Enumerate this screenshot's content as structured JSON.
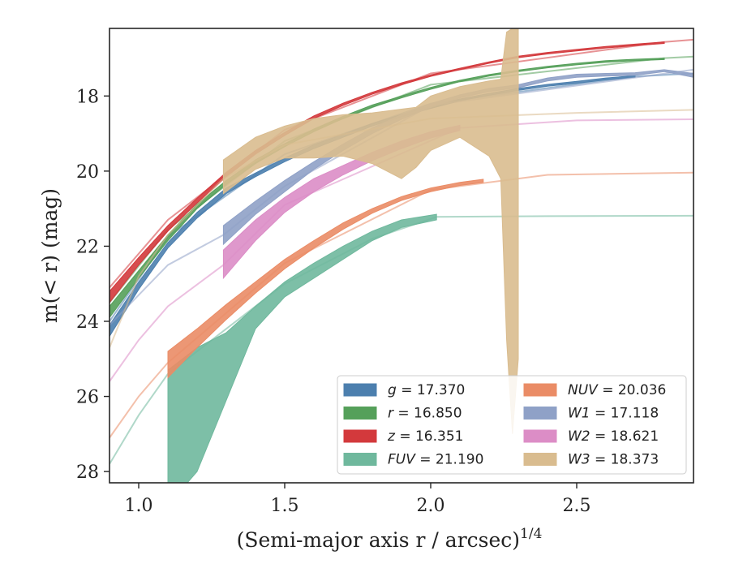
{
  "chart_data": {
    "type": "area",
    "xlabel": "(Semi-major axis r / arcsec)",
    "xlabel_exponent": "1/4",
    "ylabel": "m(< r) (mag)",
    "xlim": [
      0.9,
      2.9
    ],
    "ylim": [
      28.3,
      16.2
    ],
    "y_inverted": true,
    "x_ticks": [
      "1.0",
      "1.5",
      "2.0",
      "2.5"
    ],
    "y_ticks": [
      "18",
      "20",
      "22",
      "24",
      "26",
      "28"
    ],
    "legend": {
      "placement": "lower-right",
      "columns": 2
    },
    "series": [
      {
        "name": "g = 17.370",
        "label_var": "g",
        "label_val": "17.370",
        "color": "#4c7fae",
        "band": [
          [
            0.9,
            24.4,
            24.1
          ],
          [
            1.0,
            23.15,
            22.95
          ],
          [
            1.1,
            22.05,
            21.9
          ],
          [
            1.2,
            21.25,
            21.1
          ],
          [
            1.3,
            20.6,
            20.45
          ],
          [
            1.4,
            20.15,
            20.05
          ],
          [
            1.5,
            19.75,
            19.65
          ],
          [
            1.6,
            19.4,
            19.3
          ],
          [
            1.7,
            19.1,
            19.02
          ],
          [
            1.8,
            18.8,
            18.73
          ],
          [
            1.9,
            18.55,
            18.49
          ],
          [
            2.0,
            18.33,
            18.27
          ],
          [
            2.1,
            18.13,
            18.08
          ],
          [
            2.2,
            17.98,
            17.93
          ],
          [
            2.3,
            17.85,
            17.8
          ],
          [
            2.4,
            17.74,
            17.69
          ],
          [
            2.5,
            17.66,
            17.61
          ],
          [
            2.6,
            17.57,
            17.52
          ],
          [
            2.7,
            17.5,
            17.46
          ]
        ],
        "tail": [
          [
            0.9,
            24.0
          ],
          [
            1.1,
            21.75
          ],
          [
            1.5,
            19.55
          ],
          [
            2.0,
            18.2
          ],
          [
            2.7,
            17.48
          ],
          [
            2.9,
            17.4
          ]
        ]
      },
      {
        "name": "r = 16.850",
        "label_var": "r",
        "label_val": "16.850",
        "color": "#55a05a",
        "band": [
          [
            0.9,
            23.9,
            23.6
          ],
          [
            1.0,
            22.85,
            22.65
          ],
          [
            1.1,
            21.85,
            21.7
          ],
          [
            1.2,
            21.0,
            20.88
          ],
          [
            1.3,
            20.35,
            20.25
          ],
          [
            1.4,
            19.8,
            19.7
          ],
          [
            1.5,
            19.35,
            19.27
          ],
          [
            1.6,
            18.95,
            18.88
          ],
          [
            1.7,
            18.6,
            18.54
          ],
          [
            1.8,
            18.3,
            18.24
          ],
          [
            1.9,
            18.05,
            18.0
          ],
          [
            2.0,
            17.82,
            17.77
          ],
          [
            2.1,
            17.62,
            17.58
          ],
          [
            2.2,
            17.47,
            17.43
          ],
          [
            2.3,
            17.35,
            17.31
          ],
          [
            2.4,
            17.25,
            17.21
          ],
          [
            2.5,
            17.17,
            17.13
          ],
          [
            2.6,
            17.1,
            17.06
          ],
          [
            2.7,
            17.06,
            17.02
          ],
          [
            2.8,
            17.03,
            16.99
          ]
        ],
        "tail": [
          [
            0.9,
            23.5
          ],
          [
            1.1,
            21.55
          ],
          [
            1.5,
            19.2
          ],
          [
            2.0,
            17.7
          ],
          [
            2.8,
            16.99
          ],
          [
            2.9,
            16.95
          ]
        ]
      },
      {
        "name": "z = 16.351",
        "label_var": "z",
        "label_val": "16.351",
        "color": "#d3393c",
        "band": [
          [
            0.9,
            23.5,
            23.2
          ],
          [
            1.0,
            22.5,
            22.3
          ],
          [
            1.1,
            21.6,
            21.45
          ],
          [
            1.2,
            20.85,
            20.72
          ],
          [
            1.3,
            20.15,
            20.03
          ],
          [
            1.4,
            19.55,
            19.45
          ],
          [
            1.5,
            19.05,
            18.97
          ],
          [
            1.6,
            18.6,
            18.53
          ],
          [
            1.7,
            18.25,
            18.19
          ],
          [
            1.8,
            17.95,
            17.9
          ],
          [
            1.9,
            17.7,
            17.65
          ],
          [
            2.0,
            17.48,
            17.44
          ],
          [
            2.1,
            17.3,
            17.26
          ],
          [
            2.2,
            17.13,
            17.09
          ],
          [
            2.3,
            16.98,
            16.94
          ],
          [
            2.4,
            16.88,
            16.84
          ],
          [
            2.5,
            16.8,
            16.76
          ],
          [
            2.6,
            16.72,
            16.68
          ],
          [
            2.7,
            16.66,
            16.62
          ],
          [
            2.8,
            16.6,
            16.56
          ]
        ],
        "tail": [
          [
            0.9,
            23.1
          ],
          [
            1.1,
            21.3
          ],
          [
            1.5,
            18.9
          ],
          [
            2.0,
            17.4
          ],
          [
            2.8,
            16.56
          ],
          [
            2.9,
            16.5
          ]
        ]
      },
      {
        "name": "FUV = 21.190",
        "label_var": "FUV",
        "label_val": "21.190",
        "color": "#6fb89d",
        "band": [
          [
            1.1,
            28.9,
            25.3
          ],
          [
            1.2,
            28.0,
            24.7
          ],
          [
            1.3,
            26.1,
            24.3
          ],
          [
            1.4,
            24.2,
            23.6
          ],
          [
            1.5,
            23.35,
            22.95
          ],
          [
            1.6,
            22.85,
            22.45
          ],
          [
            1.7,
            22.35,
            22.0
          ],
          [
            1.8,
            21.85,
            21.6
          ],
          [
            1.9,
            21.5,
            21.3
          ],
          [
            2.02,
            21.3,
            21.15
          ]
        ],
        "tail": [
          [
            0.9,
            27.8
          ],
          [
            1.0,
            26.5
          ],
          [
            1.1,
            25.4
          ],
          [
            1.3,
            24.2
          ],
          [
            1.5,
            23.0
          ],
          [
            1.8,
            21.8
          ],
          [
            2.02,
            21.22
          ],
          [
            2.4,
            21.2
          ],
          [
            2.9,
            21.19
          ]
        ]
      },
      {
        "name": "NUV = 20.036",
        "label_var": "NUV",
        "label_val": "20.036",
        "color": "#ea8c66",
        "band": [
          [
            1.1,
            25.5,
            24.8
          ],
          [
            1.2,
            24.7,
            24.2
          ],
          [
            1.3,
            23.95,
            23.55
          ],
          [
            1.4,
            23.25,
            22.95
          ],
          [
            1.5,
            22.6,
            22.35
          ],
          [
            1.6,
            22.05,
            21.85
          ],
          [
            1.7,
            21.55,
            21.38
          ],
          [
            1.8,
            21.12,
            21.0
          ],
          [
            1.9,
            20.78,
            20.68
          ],
          [
            2.0,
            20.55,
            20.45
          ],
          [
            2.1,
            20.38,
            20.3
          ],
          [
            2.18,
            20.3,
            20.22
          ]
        ],
        "tail": [
          [
            0.9,
            27.1
          ],
          [
            1.0,
            26.0
          ],
          [
            1.1,
            25.1
          ],
          [
            1.5,
            22.45
          ],
          [
            2.0,
            20.5
          ],
          [
            2.4,
            20.1
          ],
          [
            2.9,
            20.04
          ]
        ]
      },
      {
        "name": "W1 = 17.118",
        "label_var": "W1",
        "label_val": "17.118",
        "color": "#8fa1c7",
        "band": [
          [
            1.29,
            21.95,
            21.45
          ],
          [
            1.4,
            21.15,
            20.8
          ],
          [
            1.5,
            20.55,
            20.25
          ],
          [
            1.6,
            19.95,
            19.75
          ],
          [
            1.7,
            19.45,
            19.28
          ],
          [
            1.8,
            19.0,
            18.85
          ],
          [
            1.9,
            18.62,
            18.5
          ],
          [
            2.0,
            18.3,
            18.2
          ],
          [
            2.1,
            18.05,
            17.97
          ],
          [
            2.2,
            17.88,
            17.8
          ],
          [
            2.3,
            17.78,
            17.7
          ],
          [
            2.4,
            17.6,
            17.52
          ],
          [
            2.5,
            17.5,
            17.42
          ],
          [
            2.6,
            17.47,
            17.4
          ],
          [
            2.7,
            17.45,
            17.38
          ],
          [
            2.8,
            17.35,
            17.3
          ],
          [
            2.9,
            17.5,
            17.4
          ]
        ],
        "tail": [
          [
            0.9,
            24.1
          ],
          [
            1.0,
            23.3
          ],
          [
            1.1,
            22.5
          ],
          [
            1.29,
            21.7
          ],
          [
            1.5,
            20.4
          ],
          [
            2.0,
            18.25
          ],
          [
            2.9,
            17.3
          ]
        ]
      },
      {
        "name": "W2 = 18.621",
        "label_var": "W2",
        "label_val": "18.621",
        "color": "#dc8dc6",
        "band": [
          [
            1.29,
            22.85,
            22.1
          ],
          [
            1.4,
            21.85,
            21.3
          ],
          [
            1.5,
            21.1,
            20.7
          ],
          [
            1.6,
            20.55,
            20.2
          ],
          [
            1.7,
            20.1,
            19.85
          ],
          [
            1.8,
            19.72,
            19.5
          ],
          [
            1.9,
            19.4,
            19.2
          ],
          [
            2.0,
            19.12,
            18.95
          ],
          [
            2.1,
            18.92,
            18.78
          ]
        ],
        "tail": [
          [
            0.9,
            25.6
          ],
          [
            1.0,
            24.5
          ],
          [
            1.1,
            23.6
          ],
          [
            1.29,
            22.5
          ],
          [
            1.5,
            20.9
          ],
          [
            2.1,
            18.85
          ],
          [
            2.5,
            18.65
          ],
          [
            2.9,
            18.62
          ]
        ]
      },
      {
        "name": "W3 = 18.373",
        "label_var": "W3",
        "label_val": "18.373",
        "color": "#d9bc8f",
        "band": [
          [
            1.29,
            20.6,
            19.7
          ],
          [
            1.4,
            19.95,
            19.1
          ],
          [
            1.5,
            19.65,
            18.8
          ],
          [
            1.6,
            19.65,
            18.6
          ],
          [
            1.7,
            19.6,
            18.5
          ],
          [
            1.8,
            19.8,
            18.45
          ],
          [
            1.9,
            20.2,
            18.35
          ],
          [
            1.95,
            19.9,
            18.3
          ],
          [
            2.0,
            19.45,
            18.0
          ],
          [
            2.1,
            19.1,
            17.75
          ],
          [
            2.2,
            19.6,
            17.6
          ],
          [
            2.24,
            20.2,
            17.55
          ],
          [
            2.26,
            24.5,
            16.3
          ],
          [
            2.28,
            27.0,
            16.2
          ],
          [
            2.3,
            25.0,
            16.2
          ]
        ],
        "tail": [
          [
            0.9,
            24.7
          ],
          [
            1.0,
            22.8
          ],
          [
            1.1,
            21.7
          ],
          [
            1.29,
            20.2
          ],
          [
            1.5,
            19.3
          ],
          [
            2.0,
            18.6
          ],
          [
            2.5,
            18.45
          ],
          [
            2.9,
            18.37
          ]
        ]
      }
    ]
  }
}
